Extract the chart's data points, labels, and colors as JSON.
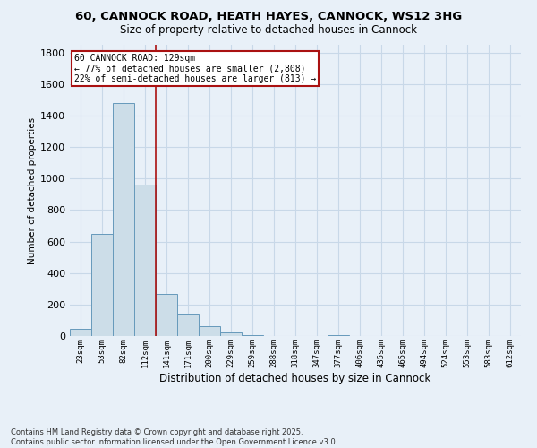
{
  "title_line1": "60, CANNOCK ROAD, HEATH HAYES, CANNOCK, WS12 3HG",
  "title_line2": "Size of property relative to detached houses in Cannock",
  "xlabel": "Distribution of detached houses by size in Cannock",
  "ylabel": "Number of detached properties",
  "categories": [
    "23sqm",
    "53sqm",
    "82sqm",
    "112sqm",
    "141sqm",
    "171sqm",
    "200sqm",
    "229sqm",
    "259sqm",
    "288sqm",
    "318sqm",
    "347sqm",
    "377sqm",
    "406sqm",
    "435sqm",
    "465sqm",
    "494sqm",
    "524sqm",
    "553sqm",
    "583sqm",
    "612sqm"
  ],
  "values": [
    45,
    650,
    1480,
    960,
    270,
    135,
    65,
    20,
    5,
    0,
    0,
    0,
    5,
    0,
    0,
    0,
    0,
    0,
    0,
    0,
    0
  ],
  "bar_color": "#ccdde8",
  "bar_edge_color": "#6699bb",
  "grid_color": "#c8d8e8",
  "background_color": "#e8f0f8",
  "vline_x": 3.5,
  "vline_color": "#aa1111",
  "annotation_text": "60 CANNOCK ROAD: 129sqm\n← 77% of detached houses are smaller (2,808)\n22% of semi-detached houses are larger (813) →",
  "annotation_box_color": "#ffffff",
  "annotation_box_edge": "#aa1111",
  "ylim": [
    0,
    1850
  ],
  "yticks": [
    0,
    200,
    400,
    600,
    800,
    1000,
    1200,
    1400,
    1600,
    1800
  ],
  "footer_line1": "Contains HM Land Registry data © Crown copyright and database right 2025.",
  "footer_line2": "Contains public sector information licensed under the Open Government Licence v3.0."
}
